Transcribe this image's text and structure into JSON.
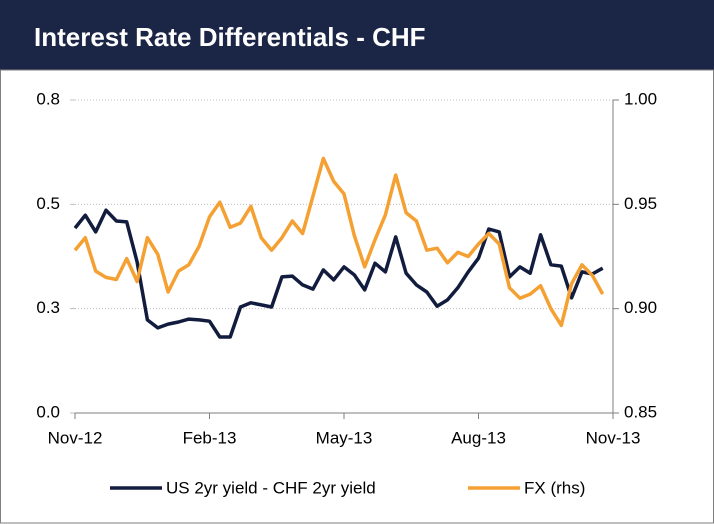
{
  "chart_data": {
    "type": "line",
    "title": "Interest Rate Differentials - CHF",
    "xlim": [
      0,
      52
    ],
    "xticks": [
      {
        "value": 0,
        "label": "Nov-12"
      },
      {
        "value": 13,
        "label": "Feb-13"
      },
      {
        "value": 26,
        "label": "May-13"
      },
      {
        "value": 39,
        "label": "Aug-13"
      },
      {
        "value": 52,
        "label": "Nov-13"
      }
    ],
    "x": [
      0,
      1,
      2,
      3,
      4,
      5,
      6,
      7,
      8,
      9,
      10,
      11,
      12,
      13,
      14,
      15,
      16,
      17,
      18,
      19,
      20,
      21,
      22,
      23,
      24,
      25,
      26,
      27,
      28,
      29,
      30,
      31,
      32,
      33,
      34,
      35,
      36,
      37,
      38,
      39,
      40,
      41,
      42,
      43,
      44,
      45,
      46,
      47,
      48,
      49,
      50,
      51
    ],
    "ylim": [
      0,
      0.75
    ],
    "yticks": [
      {
        "value": 0,
        "label": "0.0"
      },
      {
        "value": 0.25,
        "label": "0.3"
      },
      {
        "value": 0.5,
        "label": "0.5"
      },
      {
        "value": 0.75,
        "label": "0.8"
      }
    ],
    "y2lim": [
      0.85,
      1.0
    ],
    "y2ticks": [
      {
        "value": 0.85,
        "label": "0.85"
      },
      {
        "value": 0.9,
        "label": "0.90"
      },
      {
        "value": 0.95,
        "label": "0.95"
      },
      {
        "value": 1.0,
        "label": "1.00"
      }
    ],
    "grid": true,
    "series": [
      {
        "name": "US 2yr yield - CHF 2yr yield",
        "color": "#121c3e",
        "values": [
          0.443,
          0.474,
          0.434,
          0.486,
          0.46,
          0.458,
          0.362,
          0.223,
          0.204,
          0.213,
          0.218,
          0.225,
          0.223,
          0.22,
          0.182,
          0.182,
          0.254,
          0.264,
          0.259,
          0.254,
          0.326,
          0.328,
          0.307,
          0.297,
          0.343,
          0.319,
          0.35,
          0.331,
          0.295,
          0.359,
          0.338,
          0.422,
          0.335,
          0.307,
          0.29,
          0.256,
          0.271,
          0.3,
          0.338,
          0.371,
          0.441,
          0.434,
          0.326,
          0.35,
          0.335,
          0.427,
          0.355,
          0.352,
          0.276,
          0.338,
          0.333,
          0.347
        ]
      },
      {
        "name": "FX (rhs)",
        "color": "#f5a033",
        "axis": "y2",
        "values": [
          0.928,
          0.934,
          0.918,
          0.915,
          0.914,
          0.924,
          0.913,
          0.934,
          0.926,
          0.908,
          0.918,
          0.921,
          0.93,
          0.944,
          0.951,
          0.939,
          0.941,
          0.949,
          0.934,
          0.928,
          0.934,
          0.942,
          0.936,
          0.954,
          0.972,
          0.961,
          0.955,
          0.935,
          0.92,
          0.933,
          0.945,
          0.964,
          0.946,
          0.942,
          0.928,
          0.929,
          0.922,
          0.927,
          0.925,
          0.931,
          0.936,
          0.931,
          0.91,
          0.905,
          0.907,
          0.911,
          0.9,
          0.892,
          0.912,
          0.921,
          0.916,
          0.907
        ]
      }
    ]
  }
}
